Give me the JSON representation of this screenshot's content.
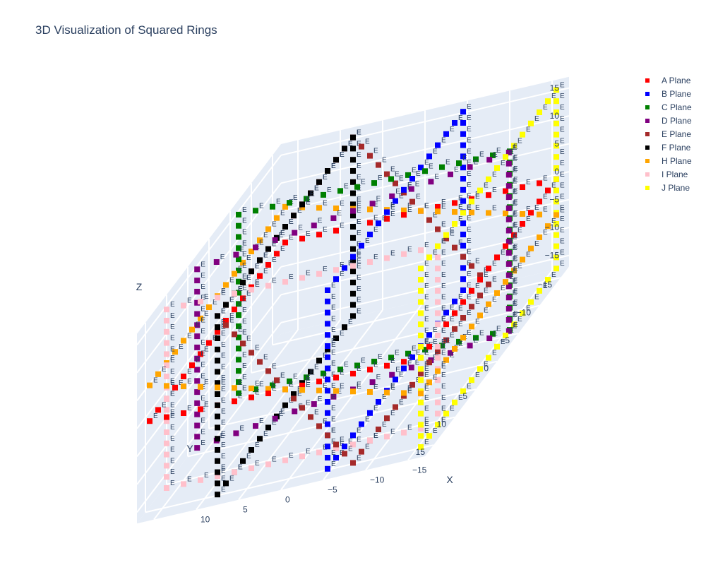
{
  "chart_data": {
    "type": "scatter",
    "title": "3D Visualization of Squared Rings",
    "axes": {
      "x": {
        "label": "X",
        "range": [
          -17,
          17
        ],
        "ticks": [
          -15,
          -10,
          -5,
          0,
          5,
          10
        ]
      },
      "y": {
        "label": "Y",
        "range": [
          -17,
          17
        ],
        "ticks": [
          -15,
          -10,
          -5,
          0,
          5,
          10,
          15
        ]
      },
      "z": {
        "label": "Z",
        "range": [
          -17,
          17
        ],
        "ticks": [
          -15,
          -10,
          -5,
          0,
          5,
          10,
          15
        ]
      }
    },
    "grid": true,
    "legend_position": "top-right",
    "marker_text": "E",
    "series": [
      {
        "name": "A Plane",
        "color": "#ff0000",
        "ring_size": 16,
        "plane": "z",
        "offset": 0
      },
      {
        "name": "B Plane",
        "color": "#0000ff",
        "ring_size": 16,
        "plane": "x",
        "offset": -5
      },
      {
        "name": "C Plane",
        "color": "#008000",
        "ring_size": 16,
        "plane": "y",
        "offset": -5
      },
      {
        "name": "D Plane",
        "color": "#800080",
        "ring_size": 16,
        "plane": "diag-xy",
        "offset": 0
      },
      {
        "name": "E Plane",
        "color": "#a52a2a",
        "ring_size": 16,
        "plane": "diag-yz",
        "offset": 0
      },
      {
        "name": "F Plane",
        "color": "#000000",
        "ring_size": 16,
        "plane": "x",
        "offset": 8
      },
      {
        "name": "H Plane",
        "color": "#ffa500",
        "ring_size": 16,
        "plane": "diag-xz",
        "offset": 0
      },
      {
        "name": "I Plane",
        "color": "#ffc0cb",
        "ring_size": 16,
        "plane": "y",
        "offset": 12
      },
      {
        "name": "J Plane",
        "color": "#ffff00",
        "ring_size": 16,
        "plane": "x",
        "offset": -16
      }
    ]
  }
}
